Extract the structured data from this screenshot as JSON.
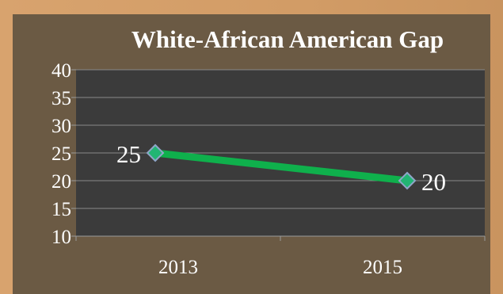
{
  "chart_data": {
    "type": "line",
    "title": "White-African American Gap",
    "categories": [
      "2013",
      "2015"
    ],
    "series": [
      {
        "values": [
          25,
          20
        ],
        "data_labels": [
          "25",
          "20"
        ]
      }
    ],
    "ylim": [
      10,
      40
    ],
    "yticks": [
      "10",
      "15",
      "20",
      "25",
      "30",
      "35",
      "40"
    ],
    "grid": true,
    "legend": "none",
    "colors": {
      "line": "#0fb04c",
      "marker": "#22b573",
      "plot_bg": "#3b3b3b",
      "panel_bg": "#6b5a44",
      "outer_bg": "#d7a36b",
      "grid": "#8a8a8a",
      "text": "#ffffff"
    }
  }
}
